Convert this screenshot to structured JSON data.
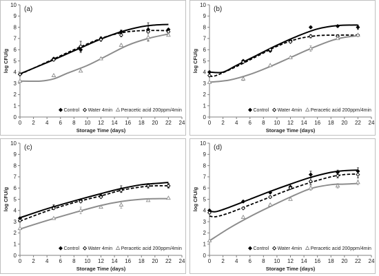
{
  "chart_data": [
    {
      "type": "scatter",
      "panel_label": "(a)",
      "xlabel": "Storage Time (days)",
      "ylabel": "log CFU/g",
      "xlim": [
        0,
        24
      ],
      "ylim": [
        0,
        10
      ],
      "xticks": [
        "0",
        "2",
        "4",
        "6",
        "8",
        "10",
        "12",
        "14",
        "16",
        "18",
        "20",
        "22",
        "24"
      ],
      "yticks": [
        "0",
        "1",
        "2",
        "3",
        "4",
        "5",
        "6",
        "7",
        "8",
        "9",
        "10"
      ],
      "legend_position": "bottom-right",
      "series": [
        {
          "name": "Control",
          "marker": "diamond",
          "line_style": "solid",
          "color": "#000000",
          "x": [
            0,
            5,
            9,
            12,
            15,
            19,
            22
          ],
          "y": [
            3.8,
            5.2,
            6.0,
            7.0,
            7.6,
            7.8,
            7.8
          ],
          "err": [
            0.1,
            0.1,
            0.25,
            0.15,
            0.15,
            0.3,
            0.1
          ],
          "fit": [
            [
              0,
              3.85
            ],
            [
              4,
              4.85
            ],
            [
              8,
              5.9
            ],
            [
              12,
              6.95
            ],
            [
              15,
              7.6
            ],
            [
              18,
              8.05
            ],
            [
              20,
              8.2
            ],
            [
              22,
              8.25
            ]
          ]
        },
        {
          "name": "Water 4min",
          "marker": "diamond-open",
          "line_style": "dashed",
          "color": "#000000",
          "x": [
            0,
            5,
            9,
            12,
            15,
            19,
            22
          ],
          "y": [
            3.8,
            5.1,
            6.3,
            6.9,
            7.3,
            7.6,
            7.6
          ],
          "err": [
            0.1,
            0.1,
            0.45,
            0.15,
            0.15,
            0.8,
            0.1
          ],
          "fit": [
            [
              0,
              3.8
            ],
            [
              4,
              4.9
            ],
            [
              8,
              6.0
            ],
            [
              12,
              7.0
            ],
            [
              15,
              7.5
            ],
            [
              18,
              7.7
            ],
            [
              22,
              7.7
            ]
          ]
        },
        {
          "name": "Peracetic acid 200ppm/4min",
          "marker": "triangle-open",
          "line_style": "solid",
          "color": "#8c8c8c",
          "x": [
            0,
            5,
            9,
            12,
            15,
            19,
            22
          ],
          "y": [
            3.2,
            3.7,
            4.1,
            5.2,
            6.4,
            7.1,
            7.3
          ],
          "err": [
            0.1,
            0.05,
            0.05,
            0.1,
            0.1,
            0.35,
            0.1
          ],
          "fit": [
            [
              0,
              3.2
            ],
            [
              3,
              3.2
            ],
            [
              5,
              3.4
            ],
            [
              7,
              3.9
            ],
            [
              10,
              4.6
            ],
            [
              13,
              5.5
            ],
            [
              16,
              6.4
            ],
            [
              19,
              7.0
            ],
            [
              22,
              7.4
            ]
          ]
        }
      ]
    },
    {
      "type": "scatter",
      "panel_label": "(b)",
      "xlabel": "Storage Time (days)",
      "ylabel": "log CFU/g",
      "xlim": [
        0,
        24
      ],
      "ylim": [
        0,
        10
      ],
      "xticks": [
        "0",
        "2",
        "4",
        "6",
        "8",
        "10",
        "12",
        "14",
        "16",
        "18",
        "20",
        "22",
        "24"
      ],
      "yticks": [
        "0",
        "1",
        "2",
        "3",
        "4",
        "5",
        "6",
        "7",
        "8",
        "9",
        "10"
      ],
      "legend_position": "bottom-right",
      "series": [
        {
          "name": "Control",
          "marker": "diamond",
          "line_style": "solid",
          "color": "#000000",
          "x": [
            0,
            5,
            9,
            12,
            15,
            19,
            22
          ],
          "y": [
            4.0,
            5.0,
            5.9,
            6.8,
            8.0,
            8.1,
            8.0
          ],
          "err": [
            0.1,
            0.1,
            0.1,
            0.1,
            0.1,
            0.1,
            0.2
          ],
          "fit": [
            [
              0,
              4.0
            ],
            [
              2,
              4.0
            ],
            [
              4,
              4.6
            ],
            [
              7,
              5.5
            ],
            [
              10,
              6.4
            ],
            [
              13,
              7.2
            ],
            [
              16,
              7.85
            ],
            [
              19,
              8.15
            ],
            [
              22,
              8.2
            ]
          ]
        },
        {
          "name": "Water 4min",
          "marker": "diamond-open",
          "line_style": "dashed",
          "color": "#000000",
          "x": [
            0,
            5,
            9,
            12,
            15,
            19,
            22
          ],
          "y": [
            3.7,
            4.9,
            6.0,
            6.7,
            7.2,
            7.2,
            7.3
          ],
          "err": [
            0.1,
            0.1,
            0.1,
            0.1,
            0.15,
            0.1,
            0.1
          ],
          "fit": [
            [
              0,
              3.65
            ],
            [
              1,
              3.7
            ],
            [
              4,
              4.5
            ],
            [
              7,
              5.4
            ],
            [
              10,
              6.3
            ],
            [
              13,
              6.95
            ],
            [
              16,
              7.25
            ],
            [
              19,
              7.3
            ],
            [
              22,
              7.3
            ]
          ]
        },
        {
          "name": "Peracetic acid 200ppm/4min",
          "marker": "triangle-open",
          "line_style": "solid",
          "color": "#8c8c8c",
          "x": [
            0,
            5,
            9,
            12,
            15,
            19,
            22
          ],
          "y": [
            3.1,
            3.4,
            4.6,
            5.3,
            6.1,
            7.0,
            7.3
          ],
          "err": [
            0.05,
            0.15,
            0.05,
            0.1,
            0.25,
            0.1,
            0.1
          ],
          "fit": [
            [
              0,
              3.1
            ],
            [
              3,
              3.3
            ],
            [
              6,
              3.8
            ],
            [
              9,
              4.5
            ],
            [
              12,
              5.3
            ],
            [
              15,
              6.1
            ],
            [
              18,
              6.8
            ],
            [
              20,
              7.1
            ],
            [
              22,
              7.25
            ]
          ]
        }
      ]
    },
    {
      "type": "scatter",
      "panel_label": "(c)",
      "xlabel": "Storage Time (days)",
      "ylabel": "log CFU/g",
      "xlim": [
        0,
        24
      ],
      "ylim": [
        0,
        10
      ],
      "xticks": [
        "0",
        "2",
        "4",
        "6",
        "8",
        "10",
        "12",
        "14",
        "16",
        "18",
        "20",
        "22",
        "24"
      ],
      "yticks": [
        "0",
        "1",
        "2",
        "3",
        "4",
        "5",
        "6",
        "7",
        "8",
        "9",
        "10"
      ],
      "legend_position": "bottom-right",
      "series": [
        {
          "name": "Control",
          "marker": "diamond",
          "line_style": "solid",
          "color": "#000000",
          "x": [
            0,
            5,
            9,
            12,
            15,
            19,
            22
          ],
          "y": [
            3.3,
            4.3,
            4.9,
            5.3,
            5.9,
            6.2,
            6.2
          ],
          "err": [
            0.1,
            0.2,
            0.1,
            0.1,
            0.3,
            0.2,
            0.2
          ],
          "fit": [
            [
              0,
              3.35
            ],
            [
              4,
              4.15
            ],
            [
              8,
              4.85
            ],
            [
              12,
              5.5
            ],
            [
              15,
              5.95
            ],
            [
              18,
              6.3
            ],
            [
              20,
              6.4
            ],
            [
              22,
              6.5
            ]
          ]
        },
        {
          "name": "Water 4min",
          "marker": "diamond-open",
          "line_style": "dashed",
          "color": "#000000",
          "x": [
            0,
            5,
            9,
            12,
            15,
            19,
            22
          ],
          "y": [
            3.1,
            4.2,
            4.8,
            5.2,
            5.8,
            6.2,
            6.2
          ],
          "err": [
            0.1,
            0.1,
            0.1,
            0.1,
            0.2,
            0.2,
            0.15
          ],
          "fit": [
            [
              0,
              3.05
            ],
            [
              4,
              3.95
            ],
            [
              8,
              4.7
            ],
            [
              12,
              5.3
            ],
            [
              15,
              5.8
            ],
            [
              18,
              6.1
            ],
            [
              20,
              6.2
            ],
            [
              22,
              6.2
            ]
          ]
        },
        {
          "name": "Peracetic acid 200ppm/4min",
          "marker": "triangle-open",
          "line_style": "solid",
          "color": "#8c8c8c",
          "x": [
            0,
            5,
            9,
            12,
            15,
            19,
            22
          ],
          "y": [
            2.4,
            3.3,
            4.0,
            4.3,
            4.5,
            4.9,
            5.1
          ],
          "err": [
            0.05,
            0.05,
            0.3,
            0.05,
            0.3,
            0.05,
            0.05
          ],
          "fit": [
            [
              0,
              2.35
            ],
            [
              4,
              3.1
            ],
            [
              8,
              3.8
            ],
            [
              12,
              4.45
            ],
            [
              15,
              4.8
            ],
            [
              18,
              5.0
            ],
            [
              20,
              5.05
            ],
            [
              22,
              5.05
            ]
          ]
        }
      ]
    },
    {
      "type": "scatter",
      "panel_label": "(d)",
      "xlabel": "Storage Time (days)",
      "ylabel": "log CFU/g",
      "xlim": [
        0,
        24
      ],
      "ylim": [
        0,
        10
      ],
      "xticks": [
        "0",
        "2",
        "4",
        "6",
        "8",
        "10",
        "12",
        "14",
        "16",
        "18",
        "20",
        "22",
        "24"
      ],
      "yticks": [
        "0",
        "1",
        "2",
        "3",
        "4",
        "5",
        "6",
        "7",
        "8",
        "9",
        "10"
      ],
      "legend_position": "bottom-right",
      "series": [
        {
          "name": "Control",
          "marker": "diamond",
          "line_style": "solid",
          "color": "#000000",
          "x": [
            0,
            5,
            9,
            12,
            15,
            19,
            22
          ],
          "y": [
            4.0,
            4.8,
            5.6,
            6.1,
            7.2,
            7.4,
            7.5
          ],
          "err": [
            0.1,
            0.1,
            0.1,
            0.1,
            0.3,
            0.2,
            0.3
          ],
          "fit": [
            [
              0,
              3.95
            ],
            [
              1,
              3.9
            ],
            [
              3,
              4.3
            ],
            [
              6,
              5.0
            ],
            [
              9,
              5.7
            ],
            [
              12,
              6.35
            ],
            [
              15,
              6.95
            ],
            [
              18,
              7.4
            ],
            [
              20,
              7.55
            ],
            [
              22,
              7.6
            ]
          ]
        },
        {
          "name": "Water 4min",
          "marker": "diamond-open",
          "line_style": "dashed",
          "color": "#000000",
          "x": [
            0,
            5,
            9,
            12,
            15,
            19,
            22
          ],
          "y": [
            3.8,
            4.2,
            5.2,
            6.0,
            6.6,
            7.1,
            7.2
          ],
          "err": [
            0.1,
            0.1,
            0.1,
            0.1,
            0.3,
            0.2,
            0.3
          ],
          "fit": [
            [
              0,
              3.5
            ],
            [
              1,
              3.45
            ],
            [
              3,
              3.8
            ],
            [
              6,
              4.5
            ],
            [
              9,
              5.2
            ],
            [
              12,
              5.9
            ],
            [
              15,
              6.5
            ],
            [
              18,
              7.0
            ],
            [
              20,
              7.2
            ],
            [
              22,
              7.25
            ]
          ]
        },
        {
          "name": "Peracetic acid 200ppm/4min",
          "marker": "triangle-open",
          "line_style": "solid",
          "color": "#8c8c8c",
          "x": [
            0,
            5,
            9,
            12,
            15,
            19,
            22
          ],
          "y": [
            1.3,
            3.4,
            4.5,
            5.0,
            6.0,
            6.2,
            6.5
          ],
          "err": [
            0.05,
            0.05,
            0.1,
            0.1,
            0.2,
            0.2,
            0.2
          ],
          "fit": [
            [
              0,
              1.3
            ],
            [
              3,
              2.45
            ],
            [
              6,
              3.45
            ],
            [
              9,
              4.35
            ],
            [
              12,
              5.2
            ],
            [
              15,
              5.95
            ],
            [
              18,
              6.3
            ],
            [
              20,
              6.35
            ],
            [
              22,
              6.4
            ]
          ]
        }
      ]
    }
  ]
}
